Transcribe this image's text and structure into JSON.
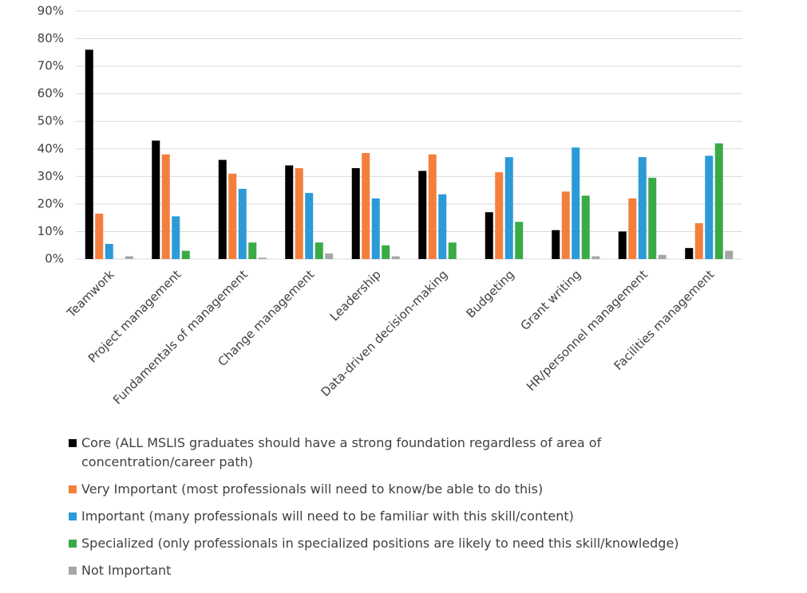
{
  "chart_data": {
    "type": "bar",
    "categories": [
      "Teamwork",
      "Project management",
      "Fundamentals of management",
      "Change management",
      "Leadership",
      "Data-driven decision-making",
      "Budgeting",
      "Grant writing",
      "HR/personnel management",
      "Facilities management"
    ],
    "series": [
      {
        "name": "Core (ALL MSLIS graduates should have a strong foundation regardless of area of concentration/career path)",
        "color": "#000000",
        "values": [
          76,
          43,
          36,
          34,
          33,
          32,
          17,
          10.5,
          10,
          4
        ]
      },
      {
        "name": "Very Important (most professionals will need to know/be able to do this)",
        "color": "#f47f3d",
        "values": [
          16.5,
          38,
          31,
          33,
          38.5,
          38,
          31.5,
          24.5,
          22,
          13
        ]
      },
      {
        "name": "Important (many professionals will need to be familiar with this skill/content)",
        "color": "#2b9ad6",
        "values": [
          5.5,
          15.5,
          25.5,
          24,
          22,
          23.5,
          37,
          40.5,
          37,
          37.5
        ]
      },
      {
        "name": "Specialized (only professionals in specialized positions are likely to need this skill/knowledge)",
        "color": "#3aaa47",
        "values": [
          0,
          3,
          6,
          6,
          5,
          6,
          13.5,
          23,
          29.5,
          42
        ]
      },
      {
        "name": "Not Important",
        "color": "#a6a6a6",
        "values": [
          1,
          0,
          0.5,
          2,
          1,
          0,
          0,
          1,
          1.5,
          3
        ]
      }
    ],
    "ylim": [
      0,
      90
    ],
    "yticks": [
      {
        "value": 0,
        "label": "0%"
      },
      {
        "value": 10,
        "label": "10%"
      },
      {
        "value": 20,
        "label": "20%"
      },
      {
        "value": 30,
        "label": "30%"
      },
      {
        "value": 40,
        "label": "40%"
      },
      {
        "value": 50,
        "label": "50%"
      },
      {
        "value": 60,
        "label": "60%"
      },
      {
        "value": 70,
        "label": "70%"
      },
      {
        "value": 80,
        "label": "80%"
      },
      {
        "value": 90,
        "label": "90%"
      }
    ],
    "grid": true
  }
}
